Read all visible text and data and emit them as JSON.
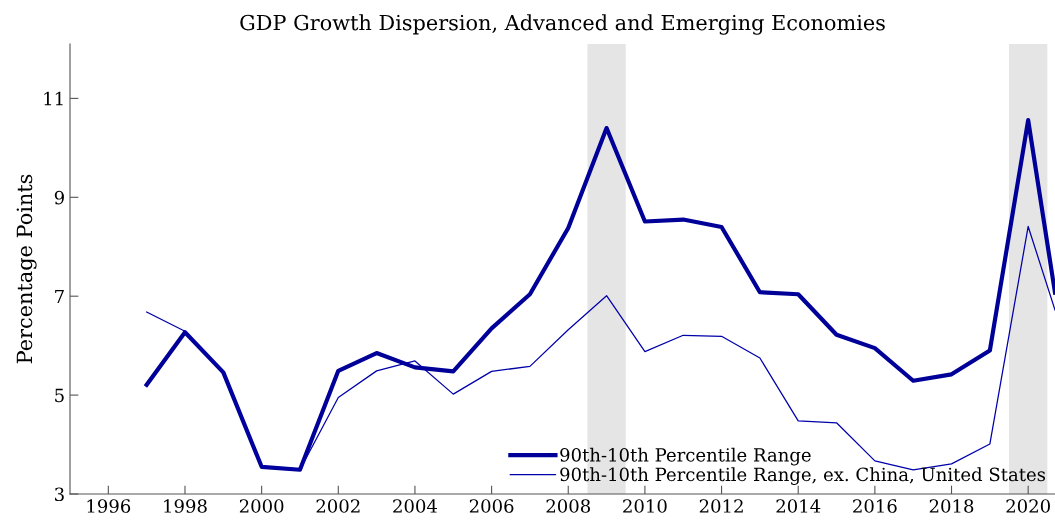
{
  "chart_data": {
    "type": "line",
    "title": "GDP Growth Dispersion, Advanced and Emerging Economies",
    "ylabel": "Percentage Points",
    "x": [
      1997,
      1998,
      1999,
      2000,
      2001,
      2002,
      2003,
      2004,
      2005,
      2006,
      2007,
      2008,
      2009,
      2010,
      2011,
      2012,
      2013,
      2014,
      2015,
      2016,
      2017,
      2018,
      2019,
      2020,
      2020.7
    ],
    "series": [
      {
        "name": "90th-10th Percentile Range",
        "color": "#000099",
        "values": [
          5.21,
          6.27,
          5.46,
          3.55,
          3.49,
          5.49,
          5.85,
          5.56,
          5.48,
          6.35,
          7.04,
          8.38,
          10.4,
          8.51,
          8.55,
          8.4,
          7.08,
          7.04,
          6.22,
          5.95,
          5.29,
          5.42,
          5.9,
          10.56,
          7.07
        ]
      },
      {
        "name": "90th-10th Percentile Range, ex. China, United States",
        "color": "#0000aa",
        "values": [
          6.68,
          6.29,
          5.46,
          3.55,
          3.49,
          4.95,
          5.49,
          5.69,
          5.02,
          5.48,
          5.58,
          6.32,
          7.01,
          5.88,
          6.21,
          6.19,
          5.75,
          4.48,
          4.44,
          3.67,
          3.49,
          3.61,
          4.01,
          8.41,
          6.72
        ]
      }
    ],
    "xlim": [
      1995,
      2020.7
    ],
    "xticks": [
      1996,
      1998,
      2000,
      2002,
      2004,
      2006,
      2008,
      2010,
      2012,
      2014,
      2016,
      2018,
      2020
    ],
    "ylim": [
      3,
      12.1
    ],
    "yticks": [
      3,
      5,
      7,
      9,
      11
    ],
    "bands": [
      {
        "axis": "x",
        "from": 2008.5,
        "to": 2009.5,
        "color": "#e5e5e5"
      },
      {
        "axis": "x",
        "from": 2019.5,
        "to": 2020.5,
        "color": "#e5e5e5"
      }
    ],
    "grid": false,
    "legend": "bottom right",
    "marker": "none",
    "line_style": "solid"
  }
}
